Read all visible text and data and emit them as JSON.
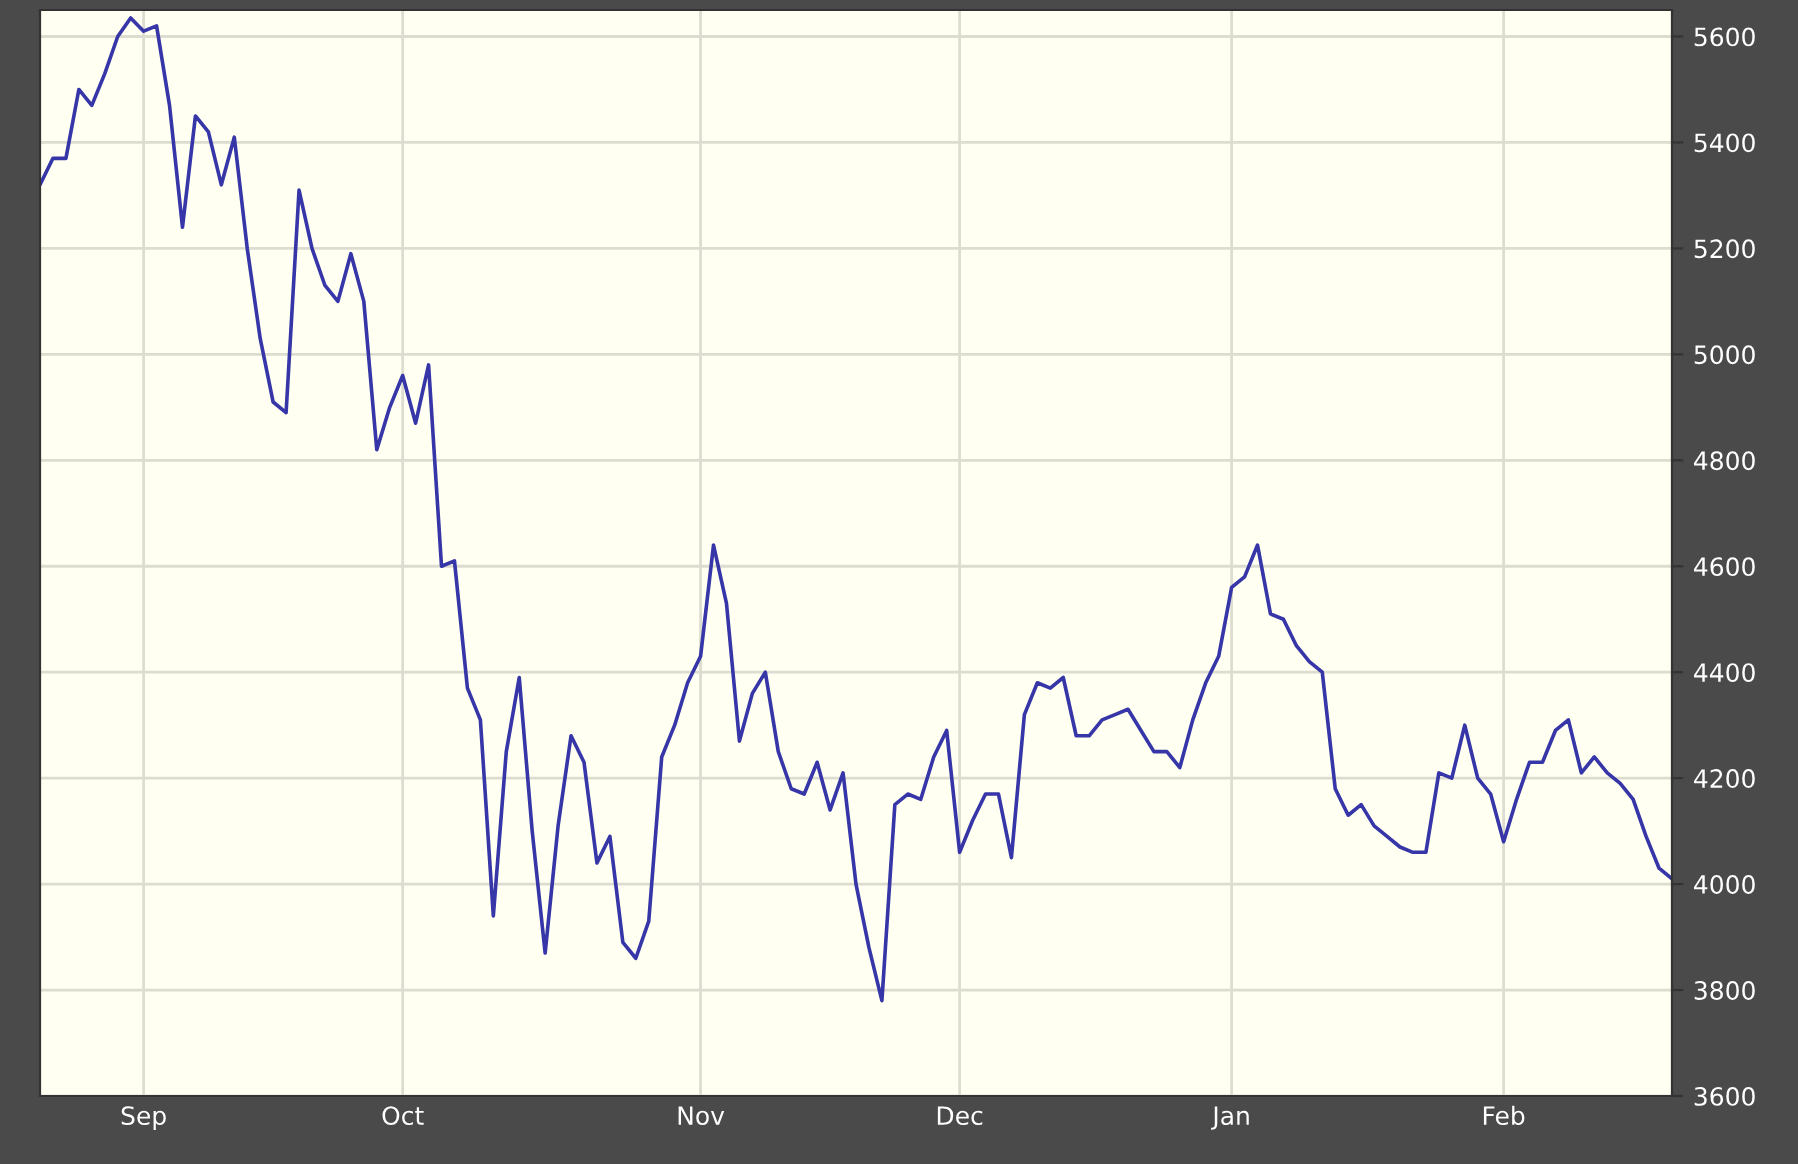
{
  "chart_data": {
    "type": "line",
    "categories": [
      null,
      null,
      null,
      null,
      null,
      null,
      null,
      null,
      "Sep",
      null,
      null,
      null,
      null,
      null,
      null,
      null,
      null,
      null,
      null,
      null,
      null,
      null,
      null,
      null,
      null,
      null,
      null,
      null,
      "Oct",
      null,
      null,
      null,
      null,
      null,
      null,
      null,
      null,
      null,
      null,
      null,
      null,
      null,
      null,
      null,
      null,
      null,
      null,
      null,
      null,
      null,
      null,
      "Nov",
      null,
      null,
      null,
      null,
      null,
      null,
      null,
      null,
      null,
      null,
      null,
      null,
      null,
      null,
      null,
      null,
      null,
      null,
      null,
      "Dec",
      null,
      null,
      null,
      null,
      null,
      null,
      null,
      null,
      null,
      null,
      null,
      null,
      null,
      null,
      null,
      null,
      null,
      null,
      null,
      null,
      "Jan",
      null,
      null,
      null,
      null,
      null,
      null,
      null,
      null,
      null,
      null,
      null,
      null,
      null,
      null,
      null,
      null,
      null,
      null,
      null,
      null,
      "Feb",
      null,
      null,
      null,
      null,
      null,
      null,
      null,
      null,
      null,
      null,
      null,
      null,
      null
    ],
    "series": [
      {
        "color": "#3636a8",
        "values": [
          5320,
          5370,
          5370,
          5500,
          5470,
          5530,
          5600,
          5635,
          5610,
          5620,
          5470,
          5240,
          5450,
          5420,
          5320,
          5410,
          5200,
          5030,
          4910,
          4890,
          5310,
          5200,
          5130,
          5100,
          5190,
          5100,
          4820,
          4900,
          4960,
          4870,
          4980,
          4600,
          4610,
          4370,
          4310,
          3940,
          4250,
          4390,
          4100,
          3870,
          4110,
          4280,
          4230,
          4040,
          4090,
          3890,
          3860,
          3930,
          4240,
          4300,
          4380,
          4430,
          4640,
          4530,
          4270,
          4360,
          4400,
          4250,
          4180,
          4170,
          4230,
          4140,
          4210,
          4000,
          3880,
          3780,
          4150,
          4170,
          4160,
          4240,
          4290,
          4060,
          4120,
          4170,
          4170,
          4050,
          4320,
          4380,
          4370,
          4390,
          4280,
          4280,
          4310,
          4320,
          4330,
          4290,
          4250,
          4250,
          4220,
          4310,
          4380,
          4430,
          4560,
          4580,
          4640,
          4510,
          4500,
          4450,
          4420,
          4400,
          4180,
          4130,
          4150,
          4110,
          4090,
          4070,
          4060,
          4060,
          4210,
          4200,
          4300,
          4200,
          4170,
          4080,
          4160,
          4230,
          4230,
          4290,
          4310,
          4210,
          4240,
          4210,
          4190,
          4160,
          4090,
          4030,
          4010
        ]
      }
    ],
    "ylim": [
      3600,
      5650
    ],
    "yticks": [
      3600,
      3800,
      4000,
      4200,
      4400,
      4600,
      4800,
      5000,
      5200,
      5400,
      5600
    ],
    "grid": true,
    "line_style": "solid",
    "marker": "none"
  }
}
